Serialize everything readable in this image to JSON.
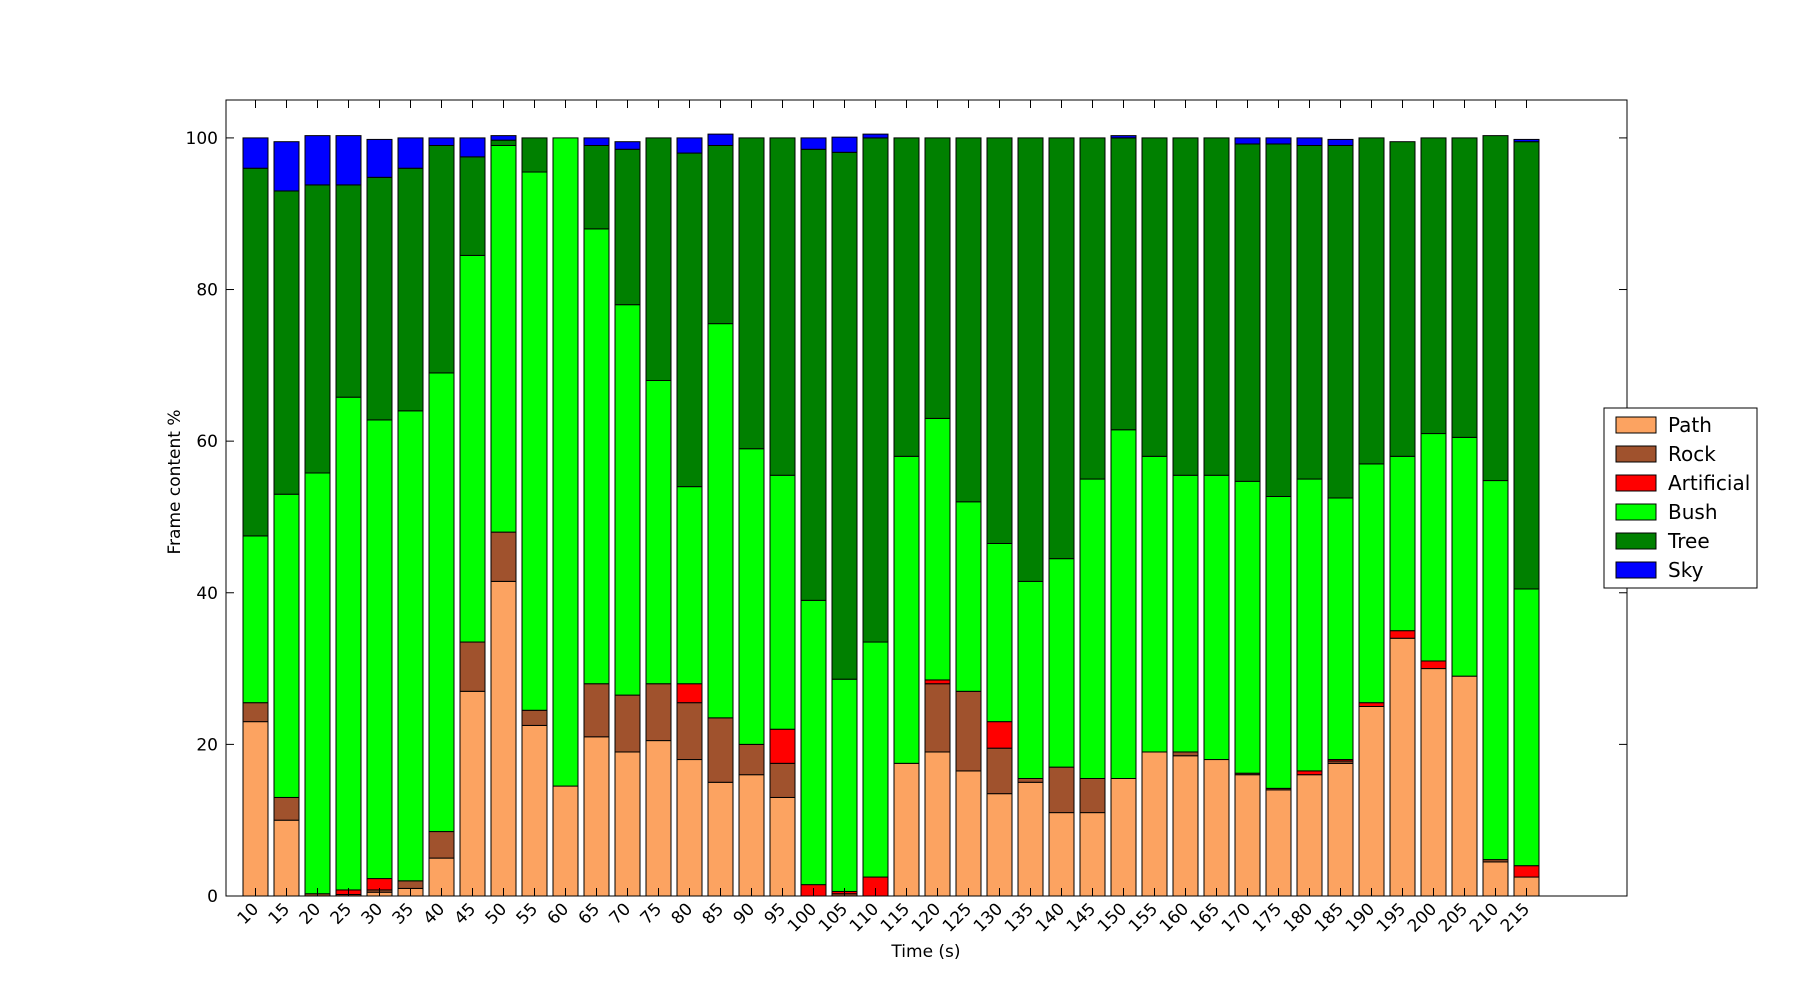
{
  "chart_data": {
    "type": "bar",
    "stacked": true,
    "title": "",
    "xlabel": "Time (s)",
    "ylabel": "Frame content %",
    "ylim": [
      0,
      105
    ],
    "yticks": [
      0,
      20,
      40,
      60,
      80,
      100
    ],
    "grid": false,
    "legend_position": "right",
    "categories": [
      "10",
      "15",
      "20",
      "25",
      "30",
      "35",
      "40",
      "45",
      "50",
      "55",
      "60",
      "65",
      "70",
      "75",
      "80",
      "85",
      "90",
      "95",
      "100",
      "105",
      "110",
      "115",
      "120",
      "125",
      "130",
      "135",
      "140",
      "145",
      "150",
      "155",
      "160",
      "165",
      "170",
      "175",
      "180",
      "185",
      "190",
      "195",
      "200",
      "205",
      "210",
      "215"
    ],
    "series": [
      {
        "name": "Path",
        "color": "#fca361",
        "values": [
          23,
          10,
          0,
          0,
          0.5,
          1,
          5,
          27,
          41.5,
          22.5,
          14.5,
          21,
          19,
          20.5,
          18,
          15,
          16,
          13,
          0,
          0,
          0,
          17.5,
          19,
          16.5,
          13.5,
          15,
          11,
          11,
          15.5,
          19,
          18.5,
          18,
          16,
          14,
          16,
          17.5,
          25,
          34,
          30,
          29,
          4.5,
          2.5
        ]
      },
      {
        "name": "Rock",
        "color": "#a0522d",
        "values": [
          2.5,
          3,
          0.3,
          0.2,
          0.3,
          1,
          3.5,
          6.5,
          6.5,
          2,
          0,
          7,
          7.5,
          7.5,
          7.5,
          8.5,
          4,
          4.5,
          0,
          0.3,
          0,
          0,
          9,
          10.5,
          6,
          0.5,
          6,
          4.5,
          0,
          0,
          0.5,
          0,
          0.2,
          0.2,
          0,
          0.3,
          0,
          0,
          0,
          0,
          0.3,
          0
        ]
      },
      {
        "name": "Artificial",
        "color": "#ff0000",
        "values": [
          0,
          0,
          0,
          0.6,
          1.5,
          0,
          0,
          0,
          0,
          0,
          0,
          0,
          0,
          0,
          2.5,
          0,
          0,
          4.5,
          1.5,
          0.3,
          2.5,
          0,
          0.5,
          0,
          3.5,
          0,
          0,
          0,
          0,
          0,
          0,
          0,
          0,
          0,
          0.5,
          0.2,
          0.5,
          1,
          1,
          0,
          0,
          1.5
        ]
      },
      {
        "name": "Bush",
        "color": "#00ff00",
        "values": [
          22,
          40,
          55.5,
          65,
          60.5,
          62,
          60.5,
          51,
          51,
          71,
          85.5,
          60,
          51.5,
          40,
          26,
          52,
          39,
          33.5,
          37.5,
          28,
          31,
          40.5,
          34.5,
          25,
          23.5,
          26,
          27.5,
          39.5,
          46,
          39,
          36.5,
          37.5,
          38.5,
          38.5,
          38.5,
          34.5,
          31.5,
          23,
          30,
          31.5,
          50,
          36.5
        ]
      },
      {
        "name": "Tree",
        "color": "#008000",
        "values": [
          48.5,
          40,
          38,
          28,
          32,
          32,
          30,
          13,
          0.7,
          4.5,
          0,
          11,
          20.5,
          32,
          44,
          23.5,
          41,
          44.5,
          59.5,
          69.5,
          66.5,
          42,
          37,
          48,
          53.5,
          58.5,
          55.5,
          45,
          38.5,
          42,
          44.5,
          44.5,
          44.5,
          46.5,
          44,
          46.5,
          43,
          41.5,
          39,
          39.5,
          45.5,
          59
        ]
      },
      {
        "name": "Sky",
        "color": "#0000ff",
        "values": [
          4,
          6.5,
          6.5,
          6.5,
          5,
          4,
          1,
          2.5,
          0.6,
          0,
          0,
          1,
          1,
          0,
          2,
          1.5,
          0,
          0,
          1.5,
          2,
          0.5,
          0,
          0,
          0,
          0,
          0,
          0,
          0,
          0.3,
          0,
          0,
          0,
          0.8,
          0.8,
          1,
          0.8,
          0,
          0,
          0,
          0,
          0,
          0.3
        ]
      }
    ]
  }
}
